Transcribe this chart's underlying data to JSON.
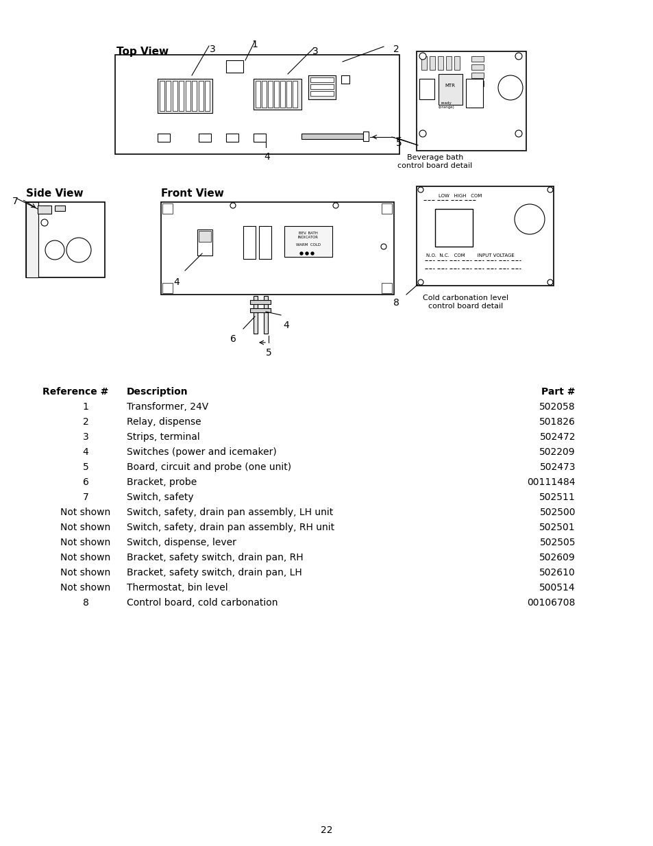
{
  "page_number": "22",
  "background_color": "#ffffff",
  "table_headers": [
    "Reference #",
    "Description",
    "Part #"
  ],
  "table_rows": [
    [
      "1",
      "Transformer, 24V",
      "502058"
    ],
    [
      "2",
      "Relay, dispense",
      "501826"
    ],
    [
      "3",
      "Strips, terminal",
      "502472"
    ],
    [
      "4",
      "Switches (power and icemaker)",
      "502209"
    ],
    [
      "5",
      "Board, circuit and probe (one unit)",
      "502473"
    ],
    [
      "6",
      "Bracket, probe",
      "00111484"
    ],
    [
      "7",
      "Switch, safety",
      "502511"
    ],
    [
      "Not shown",
      "Switch, safety, drain pan assembly, LH unit",
      "502500"
    ],
    [
      "Not shown",
      "Switch, safety, drain pan assembly, RH unit",
      "502501"
    ],
    [
      "Not shown",
      "Switch, dispense, lever",
      "502505"
    ],
    [
      "Not shown",
      "Bracket, safety switch, drain pan, RH",
      "502609"
    ],
    [
      "Not shown",
      "Bracket, safety switch, drain pan, LH",
      "502610"
    ],
    [
      "Not shown",
      "Thermostat, bin level",
      "500514"
    ],
    [
      "8",
      "Control board, cold carbonation",
      "00106708"
    ]
  ],
  "diagram_labels": {
    "top_view": "Top View",
    "side_view": "Side View",
    "front_view": "Front View",
    "beverage_detail": "Beverage bath\ncontrol board detail",
    "cold_carbonation_detail": "Cold carbonation level\ncontrol board detail"
  },
  "callout_numbers": [
    "1",
    "2",
    "3",
    "3",
    "4",
    "4",
    "4",
    "5",
    "5",
    "6",
    "7",
    "8"
  ]
}
